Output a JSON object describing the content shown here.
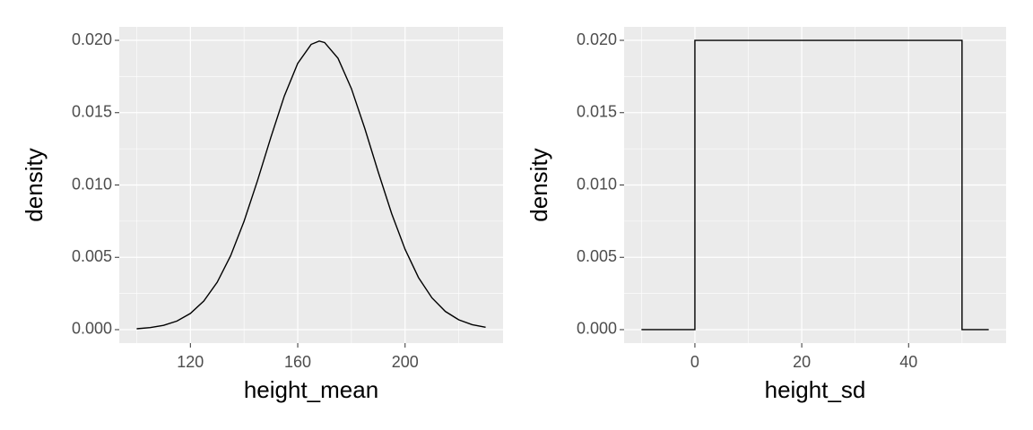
{
  "chart_data": [
    {
      "type": "line",
      "xlabel": "height_mean",
      "ylabel": "density",
      "color": "#000000",
      "grid": true,
      "x": [
        100,
        105,
        110,
        115,
        120,
        125,
        130,
        135,
        140,
        145,
        150,
        155,
        160,
        165,
        168,
        170,
        175,
        180,
        185,
        190,
        195,
        200,
        205,
        210,
        215,
        220,
        225,
        230
      ],
      "values": [
        6.16e-05,
        0.00014,
        0.000298,
        0.000596,
        0.00112,
        0.00198,
        0.00328,
        0.00511,
        0.00749,
        0.0103,
        0.0133,
        0.01615,
        0.01841,
        0.01972,
        0.01995,
        0.01985,
        0.01876,
        0.01666,
        0.0139,
        0.01089,
        0.00802,
        0.00555,
        0.0036,
        0.0022,
        0.00126,
        0.000679,
        0.000344,
        0.000163
      ],
      "xlim": [
        93.5,
        236.5
      ],
      "ylim": [
        -0.00093,
        0.02093
      ],
      "xticks": [
        120,
        160,
        200
      ],
      "x_minor_breaks": [
        100,
        140,
        180,
        220
      ],
      "yticks": [
        {
          "value": 0,
          "label": "0.000"
        },
        {
          "value": 0.005,
          "label": "0.005"
        },
        {
          "value": 0.01,
          "label": "0.010"
        },
        {
          "value": 0.015,
          "label": "0.015"
        },
        {
          "value": 0.02,
          "label": "0.020"
        }
      ],
      "y_minor_breaks": [
        0.0025,
        0.0075,
        0.0125,
        0.0175
      ]
    },
    {
      "type": "line",
      "xlabel": "height_sd",
      "ylabel": "density",
      "color": "#000000",
      "grid": true,
      "x": [
        -10,
        0,
        0,
        50,
        50,
        55
      ],
      "values": [
        0,
        0,
        0.02,
        0.02,
        0,
        0
      ],
      "xlim": [
        -13.25,
        58.25
      ],
      "ylim": [
        -0.00093,
        0.02093
      ],
      "xticks": [
        0,
        20,
        40
      ],
      "x_minor_breaks": [
        -10,
        10,
        30,
        50
      ],
      "yticks": [
        {
          "value": 0,
          "label": "0.000"
        },
        {
          "value": 0.005,
          "label": "0.005"
        },
        {
          "value": 0.01,
          "label": "0.010"
        },
        {
          "value": 0.015,
          "label": "0.015"
        },
        {
          "value": 0.02,
          "label": "0.020"
        }
      ],
      "y_minor_breaks": [
        0.0025,
        0.0075,
        0.0125,
        0.0175
      ]
    }
  ]
}
